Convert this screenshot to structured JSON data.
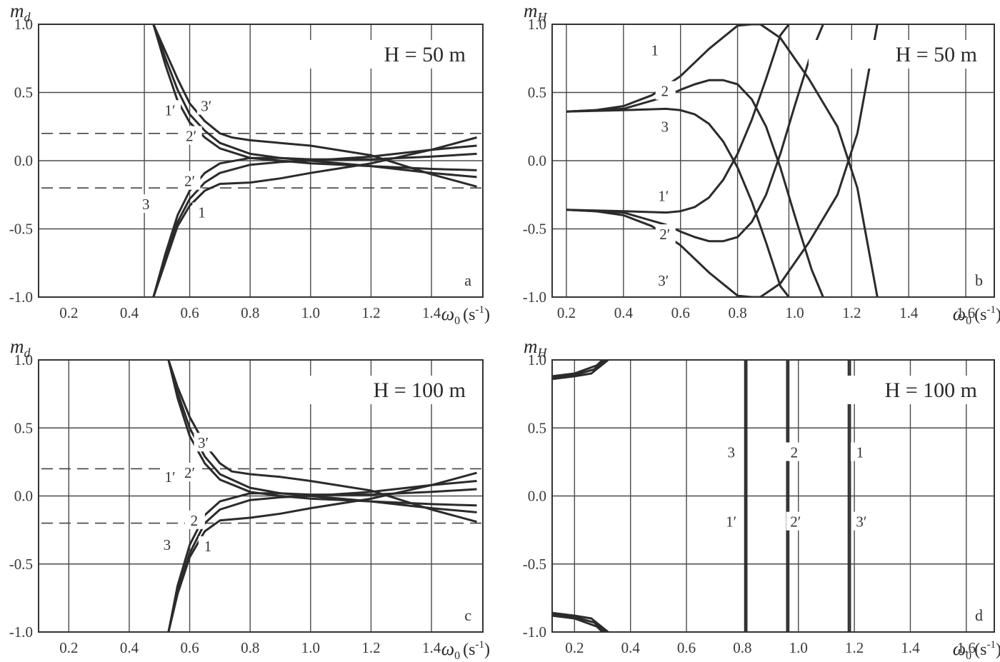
{
  "colors": {
    "curve": "#2b2b2b",
    "grid": "#4a4a4a",
    "text": "#2a2a2a"
  },
  "chart_data": [
    {
      "type": "line",
      "panel": "a",
      "ylabel_main": "m",
      "ylabel_sub": "d",
      "xlabel_main": "ω",
      "xlabel_sub": "0",
      "xlabel_unit": "(s",
      "xlabel_exp": "-1",
      "xlabel_close": ")",
      "annotation": "H = 50 m",
      "xlim": [
        0.1,
        1.57
      ],
      "ylim": [
        -1,
        1
      ],
      "xticks": [
        "0.2",
        "0.4",
        "0.6",
        "0.8",
        "1.0",
        "1.2",
        "1.4"
      ],
      "xtick_values": [
        0.2,
        0.4,
        0.6,
        0.8,
        1.0,
        1.2,
        1.4
      ],
      "yticks": [
        "1.0",
        "0.5",
        "0.0",
        "-0.5",
        "-1.0"
      ],
      "ytick_values": [
        1,
        0.5,
        0,
        -0.5,
        -1
      ],
      "xgrid": [
        0.45,
        0.6,
        0.8,
        1.0,
        1.2,
        1.4
      ],
      "ygrid": [
        -0.5,
        0,
        0.5
      ],
      "dashed_levels": [
        0.2,
        -0.2
      ],
      "series": [
        {
          "label": "1′",
          "x": [
            0.48,
            0.52,
            0.56,
            0.6,
            0.65,
            0.7,
            0.8,
            0.9,
            1.0,
            1.2,
            1.4,
            1.55
          ],
          "y": [
            1.0,
            0.7,
            0.44,
            0.28,
            0.17,
            0.09,
            0.02,
            0.0,
            -0.02,
            -0.04,
            -0.06,
            -0.07
          ]
        },
        {
          "label": "2′",
          "x": [
            0.48,
            0.52,
            0.56,
            0.6,
            0.65,
            0.7,
            0.8,
            0.9,
            1.0,
            1.2,
            1.4,
            1.55
          ],
          "y": [
            1.0,
            0.75,
            0.52,
            0.34,
            0.22,
            0.13,
            0.05,
            0.02,
            0.0,
            -0.04,
            -0.09,
            -0.12
          ]
        },
        {
          "label": "3′",
          "x": [
            0.48,
            0.52,
            0.56,
            0.6,
            0.65,
            0.7,
            0.74,
            0.8,
            0.9,
            1.0,
            1.2,
            1.4,
            1.55
          ],
          "y": [
            1.0,
            0.8,
            0.6,
            0.42,
            0.29,
            0.2,
            0.17,
            0.15,
            0.13,
            0.11,
            0.04,
            -0.1,
            -0.19
          ]
        },
        {
          "label": "1",
          "x": [
            0.48,
            0.52,
            0.56,
            0.6,
            0.65,
            0.7,
            0.8,
            0.9,
            1.0,
            1.2,
            1.4,
            1.55
          ],
          "y": [
            -1.0,
            -0.74,
            -0.48,
            -0.33,
            -0.22,
            -0.17,
            -0.16,
            -0.13,
            -0.09,
            -0.02,
            0.08,
            0.17
          ]
        },
        {
          "label": "2",
          "x": [
            0.48,
            0.52,
            0.56,
            0.6,
            0.65,
            0.7,
            0.8,
            0.9,
            1.0,
            1.2,
            1.4,
            1.55
          ],
          "y": [
            -1.0,
            -0.72,
            -0.45,
            -0.28,
            -0.16,
            -0.09,
            -0.03,
            -0.01,
            0.0,
            0.03,
            0.08,
            0.11
          ]
        },
        {
          "label": "3",
          "x": [
            0.48,
            0.52,
            0.56,
            0.6,
            0.65,
            0.7,
            0.8,
            0.9,
            1.0,
            1.2,
            1.4,
            1.55
          ],
          "y": [
            -1.0,
            -0.68,
            -0.4,
            -0.22,
            -0.09,
            -0.02,
            0.02,
            0.02,
            0.01,
            0.01,
            0.03,
            0.05
          ]
        }
      ],
      "curve_labels": [
        {
          "text": "1′",
          "x": 0.535,
          "y": 0.37
        },
        {
          "text": "3′",
          "x": 0.655,
          "y": 0.4
        },
        {
          "text": "2′",
          "x": 0.605,
          "y": 0.18
        },
        {
          "text": "2′",
          "x": 0.6,
          "y": -0.15
        },
        {
          "text": "3",
          "x": 0.455,
          "y": -0.32
        },
        {
          "text": "1",
          "x": 0.64,
          "y": -0.38
        }
      ],
      "panel_letter": "a"
    },
    {
      "type": "line",
      "panel": "b",
      "ylabel_main": "m",
      "ylabel_sub": "H",
      "xlabel_main": "ω",
      "xlabel_sub": "0",
      "xlabel_unit": "(s",
      "xlabel_exp": "-1",
      "xlabel_close": ")",
      "annotation": "H = 50 m",
      "xlim": [
        0.15,
        1.7
      ],
      "ylim": [
        -1,
        1
      ],
      "xticks": [
        "0.2",
        "0.4",
        "0.6",
        "0.8",
        "1.0",
        "1.2",
        "1.4",
        "1.6"
      ],
      "xtick_values": [
        0.2,
        0.4,
        0.6,
        0.8,
        1.0,
        1.2,
        1.4,
        1.6
      ],
      "yticks": [
        "1.0",
        "0.5",
        "0.0",
        "-0.5",
        "-1.0"
      ],
      "ytick_values": [
        1,
        0.5,
        0,
        -0.5,
        -1
      ],
      "xgrid": [
        0.2,
        0.4,
        0.6,
        0.8,
        0.98,
        1.2,
        1.4,
        1.6
      ],
      "ygrid": [
        -0.5,
        0,
        0.5
      ],
      "dashed_levels": [],
      "series": [
        {
          "label": "1",
          "x": [
            0.2,
            0.3,
            0.4,
            0.5,
            0.6,
            0.7,
            0.8,
            0.85,
            0.88,
            0.95,
            1.05,
            1.15,
            1.22,
            1.29
          ],
          "y": [
            0.36,
            0.37,
            0.4,
            0.48,
            0.62,
            0.82,
            0.99,
            1.0,
            1.0,
            0.9,
            0.6,
            0.25,
            -0.2,
            -1.0
          ]
        },
        {
          "label": "2",
          "x": [
            0.2,
            0.4,
            0.55,
            0.6,
            0.65,
            0.7,
            0.75,
            0.8,
            0.85,
            0.9,
            0.95,
            1.0,
            1.06,
            1.1
          ],
          "y": [
            0.36,
            0.38,
            0.47,
            0.52,
            0.56,
            0.59,
            0.59,
            0.56,
            0.45,
            0.25,
            -0.05,
            -0.4,
            -0.8,
            -1.0
          ]
        },
        {
          "label": "3",
          "x": [
            0.2,
            0.4,
            0.55,
            0.6,
            0.65,
            0.7,
            0.75,
            0.8,
            0.85,
            0.9,
            0.95,
            0.98
          ],
          "y": [
            0.36,
            0.37,
            0.38,
            0.37,
            0.34,
            0.27,
            0.14,
            -0.05,
            -0.3,
            -0.6,
            -0.92,
            -1.0
          ]
        },
        {
          "label": "1′",
          "x": [
            0.2,
            0.4,
            0.55,
            0.6,
            0.65,
            0.7,
            0.75,
            0.8,
            0.85,
            0.9,
            0.95,
            0.98
          ],
          "y": [
            -0.36,
            -0.37,
            -0.38,
            -0.37,
            -0.34,
            -0.27,
            -0.14,
            0.05,
            0.3,
            0.6,
            0.92,
            1.0
          ]
        },
        {
          "label": "2′",
          "x": [
            0.2,
            0.4,
            0.55,
            0.6,
            0.65,
            0.7,
            0.75,
            0.8,
            0.85,
            0.9,
            0.95,
            1.0,
            1.06,
            1.1
          ],
          "y": [
            -0.36,
            -0.38,
            -0.47,
            -0.52,
            -0.56,
            -0.59,
            -0.59,
            -0.56,
            -0.45,
            -0.25,
            0.05,
            0.4,
            0.8,
            1.0
          ]
        },
        {
          "label": "3′",
          "x": [
            0.2,
            0.3,
            0.4,
            0.5,
            0.6,
            0.7,
            0.8,
            0.85,
            0.88,
            0.95,
            1.05,
            1.15,
            1.22,
            1.29
          ],
          "y": [
            -0.36,
            -0.37,
            -0.4,
            -0.48,
            -0.62,
            -0.82,
            -0.99,
            -1.0,
            -1.0,
            -0.9,
            -0.6,
            -0.25,
            0.2,
            1.0
          ]
        }
      ],
      "curve_labels": [
        {
          "text": "1",
          "x": 0.51,
          "y": 0.81
        },
        {
          "text": "2",
          "x": 0.545,
          "y": 0.51
        },
        {
          "text": "3",
          "x": 0.545,
          "y": 0.25
        },
        {
          "text": "1′",
          "x": 0.54,
          "y": -0.26
        },
        {
          "text": "2′",
          "x": 0.545,
          "y": -0.54
        },
        {
          "text": "3′",
          "x": 0.54,
          "y": -0.88
        }
      ],
      "panel_letter": "b"
    },
    {
      "type": "line",
      "panel": "c",
      "ylabel_main": "m",
      "ylabel_sub": "d",
      "xlabel_main": "ω",
      "xlabel_sub": "0",
      "xlabel_unit": "(s",
      "xlabel_exp": "-1",
      "xlabel_close": ")",
      "annotation": "H = 100 m",
      "xlim": [
        0.1,
        1.57
      ],
      "ylim": [
        -1,
        1
      ],
      "xticks": [
        "0.2",
        "0.4",
        "0.6",
        "0.8",
        "1.0",
        "1.2",
        "1.4"
      ],
      "xtick_values": [
        0.2,
        0.4,
        0.6,
        0.8,
        1.0,
        1.2,
        1.4
      ],
      "yticks": [
        "1.0",
        "0.5",
        "0.0",
        "-0.5",
        "-1.0"
      ],
      "ytick_values": [
        1,
        0.5,
        0,
        -0.5,
        -1
      ],
      "xgrid": [
        0.2,
        0.4,
        0.6,
        0.8,
        1.0,
        1.2,
        1.4
      ],
      "ygrid": [
        -0.5,
        0,
        0.5
      ],
      "dashed_levels": [
        0.2,
        -0.2
      ],
      "series": [
        {
          "label": "1′",
          "x": [
            0.53,
            0.56,
            0.6,
            0.65,
            0.7,
            0.8,
            0.9,
            1.0,
            1.2,
            1.4,
            1.55
          ],
          "y": [
            1.0,
            0.72,
            0.44,
            0.24,
            0.12,
            0.03,
            0.0,
            -0.02,
            -0.04,
            -0.06,
            -0.07
          ]
        },
        {
          "label": "2′",
          "x": [
            0.53,
            0.56,
            0.6,
            0.65,
            0.7,
            0.8,
            0.9,
            1.0,
            1.2,
            1.4,
            1.55
          ],
          "y": [
            1.0,
            0.76,
            0.5,
            0.29,
            0.16,
            0.06,
            0.02,
            0.0,
            -0.04,
            -0.09,
            -0.12
          ]
        },
        {
          "label": "3′",
          "x": [
            0.53,
            0.56,
            0.6,
            0.65,
            0.7,
            0.74,
            0.8,
            0.9,
            1.0,
            1.2,
            1.4,
            1.55
          ],
          "y": [
            1.0,
            0.8,
            0.58,
            0.38,
            0.24,
            0.18,
            0.16,
            0.14,
            0.11,
            0.04,
            -0.1,
            -0.19
          ]
        },
        {
          "label": "1",
          "x": [
            0.53,
            0.56,
            0.6,
            0.65,
            0.7,
            0.8,
            0.9,
            1.0,
            1.2,
            1.4,
            1.55
          ],
          "y": [
            -1.0,
            -0.72,
            -0.45,
            -0.26,
            -0.18,
            -0.16,
            -0.13,
            -0.09,
            -0.02,
            0.08,
            0.17
          ]
        },
        {
          "label": "2",
          "x": [
            0.53,
            0.56,
            0.6,
            0.65,
            0.7,
            0.8,
            0.9,
            1.0,
            1.2,
            1.4,
            1.55
          ],
          "y": [
            -1.0,
            -0.7,
            -0.42,
            -0.2,
            -0.1,
            -0.03,
            -0.01,
            0.0,
            0.03,
            0.08,
            0.11
          ]
        },
        {
          "label": "3",
          "x": [
            0.53,
            0.56,
            0.6,
            0.65,
            0.7,
            0.8,
            0.9,
            1.0,
            1.2,
            1.4,
            1.55
          ],
          "y": [
            -1.0,
            -0.66,
            -0.36,
            -0.14,
            -0.04,
            0.02,
            0.02,
            0.01,
            0.01,
            0.03,
            0.05
          ]
        }
      ],
      "curve_labels": [
        {
          "text": "3′",
          "x": 0.645,
          "y": 0.39
        },
        {
          "text": "1′",
          "x": 0.535,
          "y": 0.14
        },
        {
          "text": "2′",
          "x": 0.6,
          "y": 0.17
        },
        {
          "text": "2",
          "x": 0.615,
          "y": -0.18
        },
        {
          "text": "3",
          "x": 0.525,
          "y": -0.36
        },
        {
          "text": "1",
          "x": 0.66,
          "y": -0.37
        }
      ],
      "panel_letter": "c"
    },
    {
      "type": "line",
      "panel": "d",
      "ylabel_main": "m",
      "ylabel_sub": "H",
      "xlabel_main": "ω",
      "xlabel_sub": "0",
      "xlabel_unit": "(s",
      "xlabel_exp": "-1",
      "xlabel_close": ")",
      "annotation": "H = 100 m",
      "xlim": [
        0.12,
        1.7
      ],
      "ylim": [
        -1,
        1
      ],
      "xticks": [
        "0.2",
        "0.4",
        "0.6",
        "0.8",
        "1.0",
        "1.2",
        "1.4",
        "1.6"
      ],
      "xtick_values": [
        0.2,
        0.4,
        0.6,
        0.8,
        1.0,
        1.2,
        1.4,
        1.6
      ],
      "yticks": [
        "1.0",
        "0.5",
        "0.0",
        "-0.5",
        "-1.0"
      ],
      "ytick_values": [
        1,
        0.5,
        0,
        -0.5,
        -1
      ],
      "xgrid": [
        0.2,
        0.4,
        0.6,
        0.81,
        1.0,
        1.2,
        1.4,
        1.6
      ],
      "ygrid": [
        -0.5,
        0,
        0.5
      ],
      "dashed_levels": [],
      "series": [
        {
          "label": "1",
          "x": [
            0.12,
            0.2,
            0.26,
            0.32
          ],
          "y": [
            0.86,
            0.88,
            0.9,
            1.0
          ]
        },
        {
          "label": "2",
          "x": [
            0.12,
            0.2,
            0.27,
            0.31
          ],
          "y": [
            0.87,
            0.89,
            0.93,
            1.0
          ]
        },
        {
          "label": "3",
          "x": [
            0.12,
            0.2,
            0.28,
            0.3
          ],
          "y": [
            0.88,
            0.9,
            0.96,
            1.0
          ]
        },
        {
          "label": "1′",
          "x": [
            0.12,
            0.2,
            0.26,
            0.32
          ],
          "y": [
            -0.86,
            -0.88,
            -0.9,
            -1.0
          ]
        },
        {
          "label": "2′",
          "x": [
            0.12,
            0.2,
            0.27,
            0.31
          ],
          "y": [
            -0.87,
            -0.89,
            -0.93,
            -1.0
          ]
        },
        {
          "label": "3′",
          "x": [
            0.12,
            0.2,
            0.28,
            0.3
          ],
          "y": [
            -0.88,
            -0.9,
            -0.96,
            -1.0
          ]
        }
      ],
      "vertical_lines": [
        0.808,
        0.812,
        0.816,
        0.958,
        0.962,
        0.966,
        1.178,
        1.182,
        1.186
      ],
      "curve_labels": [
        {
          "text": "3",
          "x": 0.76,
          "y": 0.32
        },
        {
          "text": "2",
          "x": 0.985,
          "y": 0.32
        },
        {
          "text": "1",
          "x": 1.22,
          "y": 0.32
        },
        {
          "text": "1′",
          "x": 0.76,
          "y": -0.19
        },
        {
          "text": "2′",
          "x": 0.99,
          "y": -0.19
        },
        {
          "text": "3′",
          "x": 1.225,
          "y": -0.19
        }
      ],
      "panel_letter": "d"
    }
  ]
}
